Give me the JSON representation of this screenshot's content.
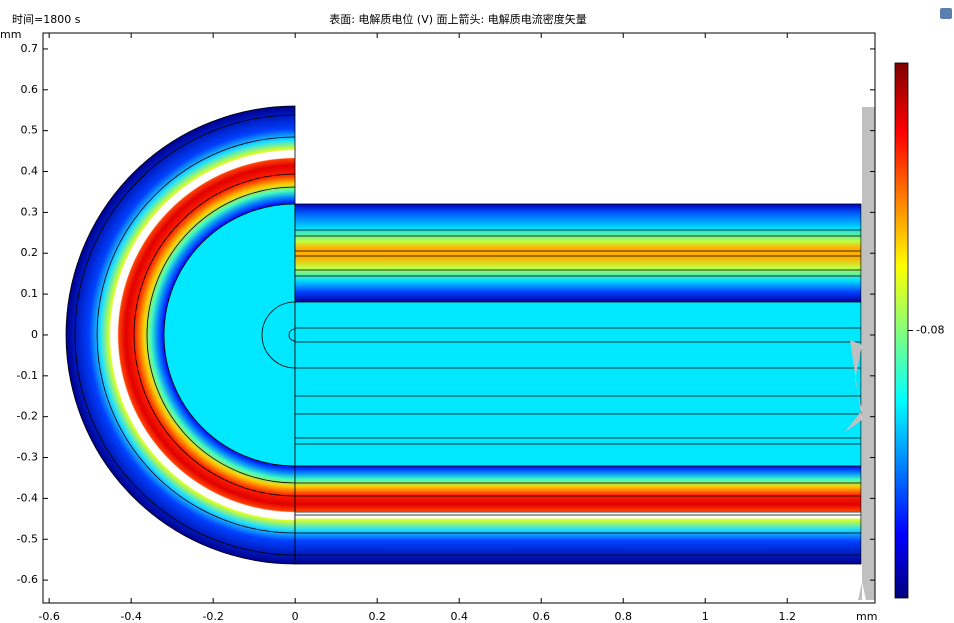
{
  "chart_data": {
    "type": "surface",
    "time_label": "时间=1800 s",
    "title": "表面: 电解质电位 (V)  面上箭头: 电解质电流密度矢量",
    "x_unit": "mm",
    "y_unit": "mm",
    "xlim": [
      -0.615,
      1.414
    ],
    "ylim": [
      -0.656,
      0.739
    ],
    "xticks": [
      -0.6,
      -0.4,
      -0.2,
      0,
      0.2,
      0.4,
      0.6,
      0.8,
      1,
      1.2
    ],
    "yticks": [
      -0.6,
      -0.5,
      -0.4,
      -0.3,
      -0.2,
      -0.1,
      0,
      0.1,
      0.2,
      0.3,
      0.4,
      0.5,
      0.6,
      0.7
    ],
    "colorbar": {
      "lim": [
        -0.116,
        -0.044
      ],
      "ticks": [
        -0.08
      ]
    }
  }
}
